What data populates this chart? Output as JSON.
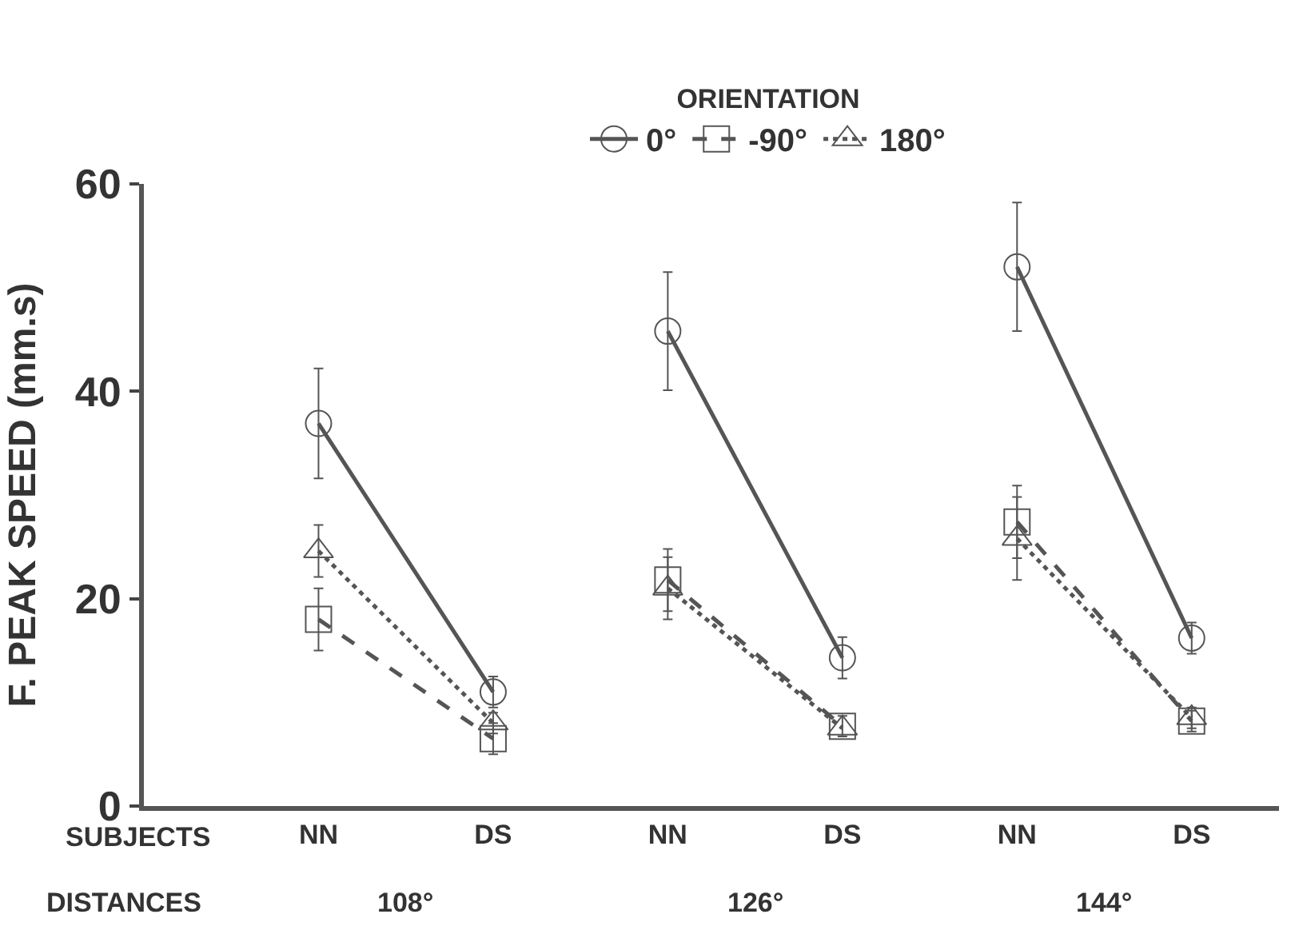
{
  "chart_data": {
    "type": "line",
    "legend_title": "ORIENTATION",
    "ylabel": "F. PEAK SPEED (mm.s)",
    "categories": [
      "NN",
      "DS",
      "NN",
      "DS",
      "NN",
      "DS"
    ],
    "annotations": [
      "SUBJECTS",
      "DISTANCES",
      "108°",
      "126°",
      "144°"
    ],
    "ylim": [
      0,
      60
    ],
    "yticks": [
      0,
      20,
      40,
      60
    ],
    "legend": "top",
    "series": [
      {
        "name": "0°",
        "color": "#555555",
        "marker": "circle",
        "line_style": "solid",
        "values": [
          36.9,
          11,
          null,
          null,
          null,
          null
        ],
        "errors": [
          5.3,
          1.5,
          null,
          null,
          null,
          null
        ]
      },
      {
        "name": "-90°",
        "color": "#555555",
        "marker": "square",
        "line_style": "dashed",
        "values": [
          18,
          6.5,
          null,
          null,
          null,
          null
        ],
        "errors": [
          3,
          1.5,
          null,
          null,
          null,
          null
        ]
      },
      {
        "name": "180°",
        "color": "#555555",
        "marker": "triangle",
        "line_style": "dotted",
        "values": [
          24.6,
          8,
          null,
          null,
          null,
          null
        ],
        "errors": [
          2.5,
          1,
          null,
          null,
          null,
          null
        ]
      },
      {
        "color": "#555555",
        "marker": "circle",
        "line_style": "solid",
        "values": [
          null,
          null,
          45.8,
          14.3,
          null,
          null
        ],
        "errors": [
          null,
          null,
          5.7,
          2,
          null,
          null
        ]
      },
      {
        "color": "#555555",
        "marker": "square",
        "line_style": "dashed",
        "values": [
          null,
          null,
          21.8,
          7.7,
          null,
          null
        ],
        "errors": [
          null,
          null,
          3,
          1,
          null,
          null
        ]
      },
      {
        "color": "#555555",
        "marker": "triangle",
        "line_style": "dotted",
        "values": [
          null,
          null,
          21,
          7.5,
          null,
          null
        ],
        "errors": [
          null,
          null,
          3,
          null,
          null,
          null
        ]
      },
      {
        "color": "#555555",
        "marker": "circle",
        "line_style": "solid",
        "values": [
          null,
          null,
          null,
          null,
          52,
          16.2
        ],
        "errors": [
          null,
          null,
          null,
          null,
          6.2,
          1.5
        ]
      },
      {
        "color": "#555555",
        "marker": "square",
        "line_style": "dashed",
        "values": [
          null,
          null,
          null,
          null,
          27.4,
          8.2
        ],
        "errors": [
          null,
          null,
          null,
          null,
          3.5,
          1
        ]
      },
      {
        "color": "#555555",
        "marker": "triangle",
        "line_style": "dotted",
        "values": [
          null,
          null,
          null,
          null,
          25.8,
          8.5
        ],
        "errors": [
          null,
          null,
          null,
          null,
          4,
          1
        ]
      }
    ]
  }
}
